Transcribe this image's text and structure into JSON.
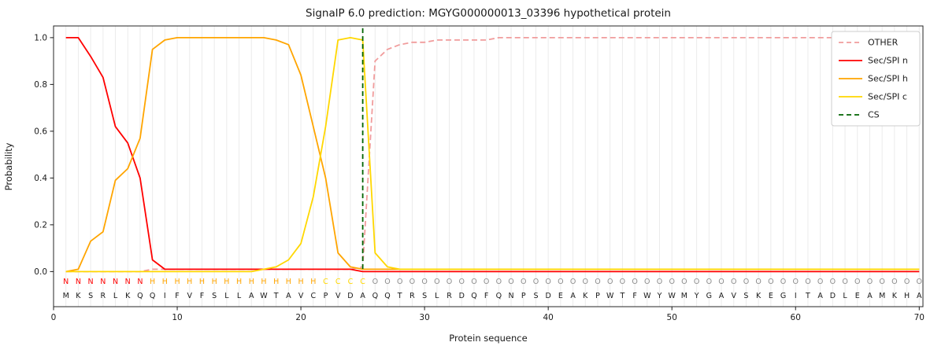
{
  "chart_data": {
    "type": "line",
    "title": "SignalP 6.0 prediction: MGYG000000013_03396 hypothetical protein",
    "xlabel": "Protein sequence",
    "ylabel": "Probability",
    "xlim": [
      0,
      70.3
    ],
    "ylim": [
      -0.15,
      1.05
    ],
    "xticks": [
      0,
      10,
      20,
      30,
      40,
      50,
      60,
      70
    ],
    "yticks": [
      0.0,
      0.2,
      0.4,
      0.6,
      0.8,
      1.0
    ],
    "grid": "vertical-line-per-residue",
    "legend_position": "upper right",
    "sequence": "MKSRLKQQIFVFSLLAWTAVCPVDAQQTRSLRDQFQNPSDEAKPWTFWYWMYGAVSKEGITADLEAMKHA",
    "region_labels": "NNNNNNNHHHHHHHHHHHHHHCCCCOOOOOOOOOOOOOOOOOOOOOOOOOOOOOOOOOOOOOOOOOOOOO",
    "region_colors": {
      "N": "#ff0000",
      "H": "#ffa500",
      "C": "#ffd700",
      "O": "#8c8c8c"
    },
    "colors": {
      "grid": "#ebebeb",
      "frame": "#262626",
      "tick": "#1a1a1a",
      "sequence_text": "#1a1a1a"
    },
    "cs": {
      "label": "CS",
      "position": 25,
      "color": "#006400"
    },
    "series": [
      {
        "name": "OTHER",
        "color": "#f19c9c",
        "dash": true,
        "values": [
          0,
          0,
          0,
          0,
          0,
          0,
          0,
          0.01,
          0.01,
          0.01,
          0.01,
          0.01,
          0.01,
          0.01,
          0.01,
          0.01,
          0.01,
          0.01,
          0.01,
          0.01,
          0.01,
          0.01,
          0.01,
          0.01,
          0.02,
          0.9,
          0.95,
          0.97,
          0.98,
          0.98,
          0.99,
          0.99,
          0.99,
          0.99,
          0.99,
          1.0,
          1.0,
          1.0,
          1.0,
          1.0,
          1.0,
          1.0,
          1.0,
          1.0,
          1.0,
          1.0,
          1.0,
          1.0,
          1.0,
          1.0,
          1.0,
          1.0,
          1.0,
          1.0,
          1.0,
          1.0,
          1.0,
          1.0,
          1.0,
          1.0,
          1.0,
          1.0,
          1.0,
          1.0,
          1.0,
          1.0,
          1.0,
          1.0,
          1.0,
          1.0
        ]
      },
      {
        "name": "Sec/SPI n",
        "color": "#ff0000",
        "dash": false,
        "values": [
          1.0,
          1.0,
          0.92,
          0.83,
          0.62,
          0.55,
          0.4,
          0.05,
          0.01,
          0.01,
          0.01,
          0.01,
          0.01,
          0.01,
          0.01,
          0.01,
          0.01,
          0.01,
          0.01,
          0.01,
          0.01,
          0.01,
          0.01,
          0.01,
          0,
          0,
          0,
          0,
          0,
          0,
          0,
          0,
          0,
          0,
          0,
          0,
          0,
          0,
          0,
          0,
          0,
          0,
          0,
          0,
          0,
          0,
          0,
          0,
          0,
          0,
          0,
          0,
          0,
          0,
          0,
          0,
          0,
          0,
          0,
          0,
          0,
          0,
          0,
          0,
          0,
          0,
          0,
          0,
          0,
          0
        ]
      },
      {
        "name": "Sec/SPI h",
        "color": "#ffa500",
        "dash": false,
        "values": [
          0,
          0.01,
          0.13,
          0.17,
          0.39,
          0.44,
          0.57,
          0.95,
          0.99,
          1.0,
          1.0,
          1.0,
          1.0,
          1.0,
          1.0,
          1.0,
          1.0,
          0.99,
          0.97,
          0.84,
          0.62,
          0.4,
          0.08,
          0.02,
          0.01,
          0.01,
          0.01,
          0.01,
          0.01,
          0.01,
          0.01,
          0.01,
          0.01,
          0.01,
          0.01,
          0.01,
          0.01,
          0.01,
          0.01,
          0.01,
          0.01,
          0.01,
          0.01,
          0.01,
          0.01,
          0.01,
          0.01,
          0.01,
          0.01,
          0.01,
          0.01,
          0.01,
          0.01,
          0.01,
          0.01,
          0.01,
          0.01,
          0.01,
          0.01,
          0.01,
          0.01,
          0.01,
          0.01,
          0.01,
          0.01,
          0.01,
          0.01,
          0.01,
          0.01,
          0.01
        ]
      },
      {
        "name": "Sec/SPI c",
        "color": "#ffd700",
        "dash": false,
        "values": [
          0,
          0,
          0,
          0,
          0,
          0,
          0,
          0,
          0,
          0,
          0,
          0,
          0,
          0,
          0,
          0,
          0.01,
          0.02,
          0.05,
          0.12,
          0.32,
          0.62,
          0.99,
          1.0,
          0.99,
          0.08,
          0.02,
          0.01,
          0.01,
          0.01,
          0.01,
          0.01,
          0.01,
          0.01,
          0.01,
          0.01,
          0.01,
          0.01,
          0.01,
          0.01,
          0.01,
          0.01,
          0.01,
          0.01,
          0.01,
          0.01,
          0.01,
          0.01,
          0.01,
          0.01,
          0.01,
          0.01,
          0.01,
          0.01,
          0.01,
          0.01,
          0.01,
          0.01,
          0.01,
          0.01,
          0.01,
          0.01,
          0.01,
          0.01,
          0.01,
          0.01,
          0.01,
          0.01,
          0.01,
          0.01
        ]
      }
    ]
  }
}
